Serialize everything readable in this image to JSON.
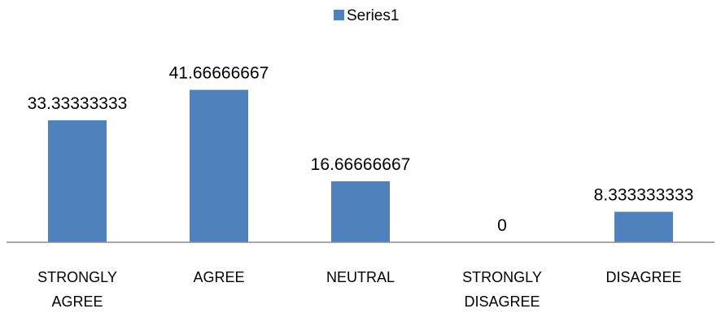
{
  "chart_data": {
    "type": "bar",
    "categories": [
      [
        "STRONGLY",
        "AGREE"
      ],
      [
        "AGREE"
      ],
      [
        "NEUTRAL"
      ],
      [
        "STRONGLY",
        "DISAGREE"
      ],
      [
        "DISAGREE"
      ]
    ],
    "series": [
      {
        "name": "Series1",
        "values": [
          33.33333333,
          41.66666667,
          16.66666667,
          0,
          8.333333333
        ],
        "labels": [
          "33.33333333",
          "41.66666667",
          "16.66666667",
          "0",
          "8.333333333"
        ],
        "color": "#4F81BD"
      }
    ],
    "title": "",
    "xlabel": "",
    "ylabel": "",
    "ylim": [
      0,
      50
    ],
    "grid": false,
    "legend": "top-center"
  }
}
